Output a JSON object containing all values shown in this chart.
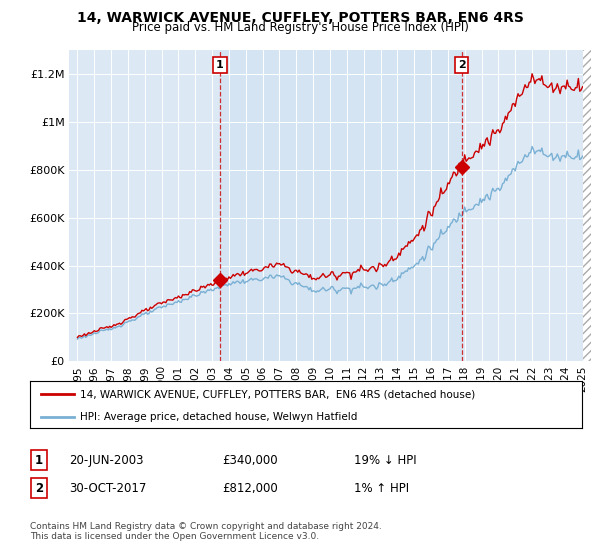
{
  "title": "14, WARWICK AVENUE, CUFFLEY, POTTERS BAR, EN6 4RS",
  "subtitle": "Price paid vs. HM Land Registry's House Price Index (HPI)",
  "red_label": "14, WARWICK AVENUE, CUFFLEY, POTTERS BAR,  EN6 4RS (detached house)",
  "blue_label": "HPI: Average price, detached house, Welwyn Hatfield",
  "sale1_date": 2003.47,
  "sale1_price": 340000,
  "sale1_label": "1",
  "sale1_text": "20-JUN-2003",
  "sale1_price_text": "£340,000",
  "sale1_hpi_text": "19% ↓ HPI",
  "sale2_date": 2017.83,
  "sale2_price": 812000,
  "sale2_label": "2",
  "sale2_text": "30-OCT-2017",
  "sale2_price_text": "£812,000",
  "sale2_hpi_text": "1% ↑ HPI",
  "ylim": [
    0,
    1300000
  ],
  "xlim": [
    1994.5,
    2025.5
  ],
  "red_color": "#cc0000",
  "blue_color": "#7ab0d4",
  "marker_color": "#cc0000",
  "vline_color": "#cc0000",
  "bg_color": "#dce9f5",
  "bg_highlight": "#cde0f0",
  "footer": "Contains HM Land Registry data © Crown copyright and database right 2024.\nThis data is licensed under the Open Government Licence v3.0.",
  "yticks": [
    0,
    200000,
    400000,
    600000,
    800000,
    1000000,
    1200000
  ],
  "ytick_labels": [
    "£0",
    "£200K",
    "£400K",
    "£600K",
    "£800K",
    "£1M",
    "£1.2M"
  ],
  "xticks": [
    1995,
    1996,
    1997,
    1998,
    1999,
    2000,
    2001,
    2002,
    2003,
    2004,
    2005,
    2006,
    2007,
    2008,
    2009,
    2010,
    2011,
    2012,
    2013,
    2014,
    2015,
    2016,
    2017,
    2018,
    2019,
    2020,
    2021,
    2022,
    2023,
    2024,
    2025
  ]
}
